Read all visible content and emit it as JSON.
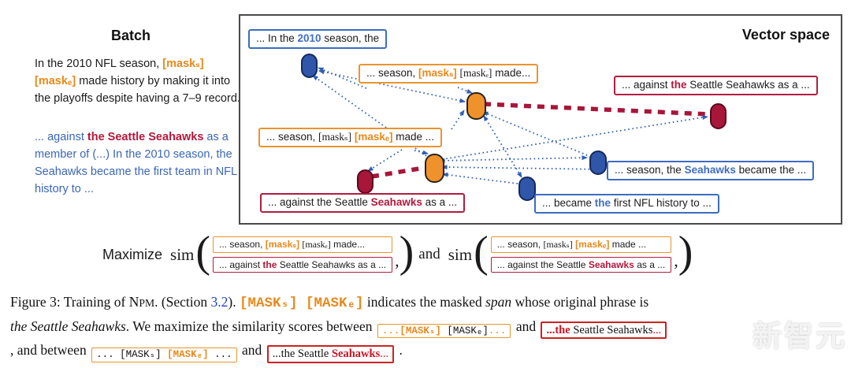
{
  "palette": {
    "orange": "#E8891B",
    "orange_border": "#E8952F",
    "blue_text": "#3A66B8",
    "blue_pill": "#2F56A8",
    "crimson": "#A8163A",
    "crimson_border": "#B01E3E",
    "caption_red": "#CC1122",
    "link_blue": "#2243C5",
    "panel_border": "#4a4a4a"
  },
  "batch": {
    "title": "Batch",
    "para1": [
      {
        "t": "In the 2010 NFL season, ",
        "c": "k"
      },
      {
        "t": "[maskₛ]",
        "c": "ob"
      },
      {
        "t": " ",
        "c": "k"
      },
      {
        "t": "[maskₑ]",
        "c": "ob"
      },
      {
        "t": " made history by making it into the playoffs despite having a 7–9 record.",
        "c": "k"
      }
    ],
    "para2": [
      {
        "t": "... against ",
        "c": "bl"
      },
      {
        "t": "the Seattle Seahawks",
        "c": "cb"
      },
      {
        "t": " as a member of (...) In the 2010 season, the Seahawks became the first team in NFL history to ...",
        "c": "bl"
      }
    ]
  },
  "vector_space": {
    "title": "Vector space",
    "boxes": {
      "in_2010": [
        {
          "t": "... In the ",
          "c": "k"
        },
        {
          "t": "2010",
          "c": "blb"
        },
        {
          "t": " season, the",
          "c": "k"
        }
      ],
      "mask_s_query": [
        {
          "t": "... season, ",
          "c": "k"
        },
        {
          "t": "[maskₛ]",
          "c": "ob"
        },
        {
          "t": " ",
          "c": "k"
        },
        {
          "t": "[maskₑ]",
          "c": "tok"
        },
        {
          "t": " made...",
          "c": "k"
        }
      ],
      "against_the": [
        {
          "t": "... against ",
          "c": "k"
        },
        {
          "t": "the",
          "c": "cb"
        },
        {
          "t": " Seattle Seahawks as a ...",
          "c": "k"
        }
      ],
      "mask_e_query": [
        {
          "t": "... season, ",
          "c": "k"
        },
        {
          "t": "[maskₛ]",
          "c": "tok"
        },
        {
          "t": " ",
          "c": "k"
        },
        {
          "t": "[maskₑ]",
          "c": "ob"
        },
        {
          "t": " made ...",
          "c": "k"
        }
      ],
      "seahawks_became": [
        {
          "t": "... season, the ",
          "c": "k"
        },
        {
          "t": "Seahawks",
          "c": "blb"
        },
        {
          "t": " became the ...",
          "c": "k"
        }
      ],
      "became_the": [
        {
          "t": "... became ",
          "c": "k"
        },
        {
          "t": "the",
          "c": "blb"
        },
        {
          "t": " first NFL history to ...",
          "c": "k"
        }
      ],
      "against_seahawks": [
        {
          "t": "... against the Seattle ",
          "c": "k"
        },
        {
          "t": "Seahawks",
          "c": "cb"
        },
        {
          "t": " as a ...",
          "c": "k"
        }
      ]
    }
  },
  "formula": {
    "maximize": "Maximize",
    "sim": "sim",
    "open_paren": "(",
    "close_paren": ")",
    "comma": ",",
    "and": "and",
    "arg1_query": [
      {
        "t": "... season, ",
        "c": "k"
      },
      {
        "t": "[maskₛ]",
        "c": "ob"
      },
      {
        "t": " ",
        "c": "k"
      },
      {
        "t": "[maskₑ]",
        "c": "tok"
      },
      {
        "t": " made...",
        "c": "k"
      }
    ],
    "arg1_target": [
      {
        "t": "... against ",
        "c": "k"
      },
      {
        "t": "the",
        "c": "cb"
      },
      {
        "t": " Seattle Seahawks as a ...",
        "c": "k"
      }
    ],
    "arg2_query": [
      {
        "t": "... season, ",
        "c": "k"
      },
      {
        "t": "[maskₛ]",
        "c": "tok"
      },
      {
        "t": " ",
        "c": "k"
      },
      {
        "t": "[maskₑ]",
        "c": "ob"
      },
      {
        "t": " made ...",
        "c": "k"
      }
    ],
    "arg2_target": [
      {
        "t": "... against the Seattle ",
        "c": "k"
      },
      {
        "t": "Seahawks",
        "c": "cb"
      },
      {
        "t": " as a ...",
        "c": "k"
      }
    ]
  },
  "caption": {
    "line1": [
      {
        "t": "Figure 3: Training of N",
        "c": "k"
      },
      {
        "t": "PM",
        "c": "sc"
      },
      {
        "t": ". (Section ",
        "c": "k"
      },
      {
        "t": "3.2",
        "c": "link"
      },
      {
        "t": ").  ",
        "c": "k"
      },
      {
        "t": "[MASKₛ] [MASKₑ]",
        "c": "mob"
      },
      {
        "t": " indicates the masked ",
        "c": "k"
      },
      {
        "t": "span",
        "c": "i"
      },
      {
        "t": " whose original phrase is",
        "c": "k"
      }
    ],
    "line2_prefix": [
      {
        "t": "the Seattle Seahawks",
        "c": "i"
      },
      {
        "t": ". We maximize the similarity scores between ",
        "c": "k"
      }
    ],
    "line2_box1": [
      {
        "t": "...",
        "c": "o"
      },
      {
        "t": "[MASKₛ]",
        "c": "mob"
      },
      {
        "t": " [MASKₑ]",
        "c": "m"
      },
      {
        "t": "...",
        "c": "o"
      }
    ],
    "line2_and": " and ",
    "line2_box2": [
      {
        "t": "...the",
        "c": "rb"
      },
      {
        "t": " Seattle Seahawks",
        "c": "k"
      },
      {
        "t": "...",
        "c": "r"
      }
    ],
    "line3_prefix": ", and between ",
    "line3_box1": [
      {
        "t": "... [MASKₛ] ",
        "c": "m"
      },
      {
        "t": "[MASKₑ]",
        "c": "mob"
      },
      {
        "t": " ...",
        "c": "m"
      }
    ],
    "line3_and": " and ",
    "line3_box2": [
      {
        "t": "...the Seattle ",
        "c": "k"
      },
      {
        "t": "Seahawks",
        "c": "rb"
      },
      {
        "t": "...",
        "c": "r"
      }
    ],
    "line3_period": " ."
  },
  "watermark": {
    "text": "新智元"
  }
}
